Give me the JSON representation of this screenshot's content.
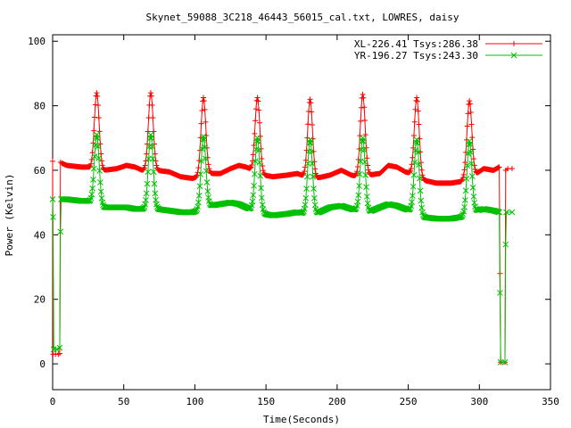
{
  "chart_data": {
    "type": "line",
    "title": "Skynet_59088_3C218_46443_56015_cal.txt, LOWRES, daisy",
    "xlabel": "Time(Seconds)",
    "ylabel": "Power (Kelvin)",
    "xlim": [
      0,
      350
    ],
    "ylim": [
      -8,
      102
    ],
    "xticks": [
      0,
      50,
      100,
      150,
      200,
      250,
      300,
      350
    ],
    "yticks": [
      0,
      20,
      40,
      60,
      80,
      100
    ],
    "grid": false,
    "legend_position": "top-right",
    "series": [
      {
        "name": "XL-226.41 Tsys:286.38",
        "color": "#ff0000",
        "marker": "plus",
        "baseline": [
          [
            0.5,
            62.8
          ],
          [
            5,
            62.5
          ],
          [
            10,
            61.5
          ],
          [
            20,
            61.0
          ],
          [
            25,
            61.0
          ],
          [
            27,
            60.5
          ],
          [
            36,
            60.0
          ],
          [
            45,
            60.5
          ],
          [
            52,
            61.5
          ],
          [
            58,
            61.0
          ],
          [
            63,
            60.0
          ],
          [
            73,
            60.0
          ],
          [
            82,
            59.5
          ],
          [
            90,
            58.0
          ],
          [
            98,
            57.5
          ],
          [
            104,
            58.0
          ],
          [
            110,
            59.0
          ],
          [
            118,
            59.0
          ],
          [
            125,
            60.5
          ],
          [
            131,
            61.5
          ],
          [
            136,
            61.0
          ],
          [
            141,
            60.0
          ],
          [
            148,
            58.5
          ],
          [
            155,
            58.0
          ],
          [
            165,
            58.5
          ],
          [
            172,
            59.0
          ],
          [
            178,
            58.0
          ],
          [
            185,
            57.5
          ],
          [
            195,
            58.5
          ],
          [
            203,
            60.0
          ],
          [
            210,
            58.5
          ],
          [
            215,
            58.0
          ],
          [
            222,
            58.5
          ],
          [
            230,
            59.0
          ],
          [
            236,
            61.5
          ],
          [
            242,
            61.0
          ],
          [
            248,
            59.5
          ],
          [
            252,
            59.0
          ],
          [
            260,
            57.0
          ],
          [
            270,
            56.0
          ],
          [
            280,
            56.0
          ],
          [
            287,
            56.5
          ],
          [
            290,
            57.5
          ],
          [
            298,
            59.0
          ],
          [
            303,
            60.5
          ],
          [
            310,
            60.0
          ],
          [
            314,
            61.0
          ]
        ],
        "peaks": [
          {
            "t": 31,
            "v": 84
          },
          {
            "t": 69,
            "v": 84
          },
          {
            "t": 106,
            "v": 82.5
          },
          {
            "t": 144,
            "v": 82.5
          },
          {
            "t": 181,
            "v": 82
          },
          {
            "t": 218,
            "v": 83.5
          },
          {
            "t": 256,
            "v": 82.5
          },
          {
            "t": 293,
            "v": 81.5
          }
        ],
        "edges": [
          [
            0,
            62.8
          ],
          [
            0.3,
            3.0
          ],
          [
            2,
            3.0
          ],
          [
            4,
            3.0
          ],
          [
            5,
            3.2
          ],
          [
            5.5,
            62.5
          ],
          [
            314,
            61.0
          ],
          [
            314.5,
            28.0
          ],
          [
            315,
            0.5
          ],
          [
            318,
            0.5
          ],
          [
            318.5,
            60.0
          ],
          [
            320,
            60.5
          ],
          [
            323,
            60.5
          ]
        ]
      },
      {
        "name": "YR-196.27 Tsys:243.30",
        "color": "#00c000",
        "marker": "x",
        "baseline": [
          [
            0.5,
            51.0
          ],
          [
            5,
            51.0
          ],
          [
            10,
            51.0
          ],
          [
            20,
            50.5
          ],
          [
            25,
            50.5
          ],
          [
            27,
            50.0
          ],
          [
            36,
            48.5
          ],
          [
            45,
            48.5
          ],
          [
            52,
            48.5
          ],
          [
            58,
            48.0
          ],
          [
            63,
            48.0
          ],
          [
            73,
            48.0
          ],
          [
            82,
            47.5
          ],
          [
            90,
            47.0
          ],
          [
            98,
            47.0
          ],
          [
            104,
            47.5
          ],
          [
            110,
            49.0
          ],
          [
            118,
            49.5
          ],
          [
            125,
            50.0
          ],
          [
            131,
            49.5
          ],
          [
            136,
            48.5
          ],
          [
            141,
            47.5
          ],
          [
            148,
            46.5
          ],
          [
            155,
            46.0
          ],
          [
            165,
            46.5
          ],
          [
            172,
            47.0
          ],
          [
            178,
            46.5
          ],
          [
            185,
            46.5
          ],
          [
            195,
            48.5
          ],
          [
            203,
            49.0
          ],
          [
            210,
            48.0
          ],
          [
            215,
            47.5
          ],
          [
            222,
            47.0
          ],
          [
            230,
            48.5
          ],
          [
            236,
            49.5
          ],
          [
            242,
            49.0
          ],
          [
            248,
            48.0
          ],
          [
            252,
            47.5
          ],
          [
            260,
            45.5
          ],
          [
            270,
            45.0
          ],
          [
            280,
            45.0
          ],
          [
            287,
            45.5
          ],
          [
            290,
            46.0
          ],
          [
            298,
            47.5
          ],
          [
            303,
            48.0
          ],
          [
            310,
            47.5
          ],
          [
            314,
            47.0
          ]
        ],
        "peaks": [
          {
            "t": 31,
            "v": 71
          },
          {
            "t": 69,
            "v": 71
          },
          {
            "t": 106,
            "v": 70.5
          },
          {
            "t": 144,
            "v": 70
          },
          {
            "t": 181,
            "v": 69.5
          },
          {
            "t": 218,
            "v": 70
          },
          {
            "t": 256,
            "v": 69.5
          },
          {
            "t": 293,
            "v": 69
          }
        ],
        "edges": [
          [
            0,
            51.0
          ],
          [
            0.3,
            45.5
          ],
          [
            0.8,
            4.5
          ],
          [
            3,
            4.5
          ],
          [
            5,
            5.0
          ],
          [
            5.5,
            41.0
          ],
          [
            6,
            51.0
          ],
          [
            314,
            47.0
          ],
          [
            314.5,
            22.0
          ],
          [
            315,
            0.5
          ],
          [
            318,
            0.5
          ],
          [
            318.5,
            37.0
          ],
          [
            319,
            47.0
          ],
          [
            323,
            47.0
          ]
        ]
      }
    ]
  }
}
